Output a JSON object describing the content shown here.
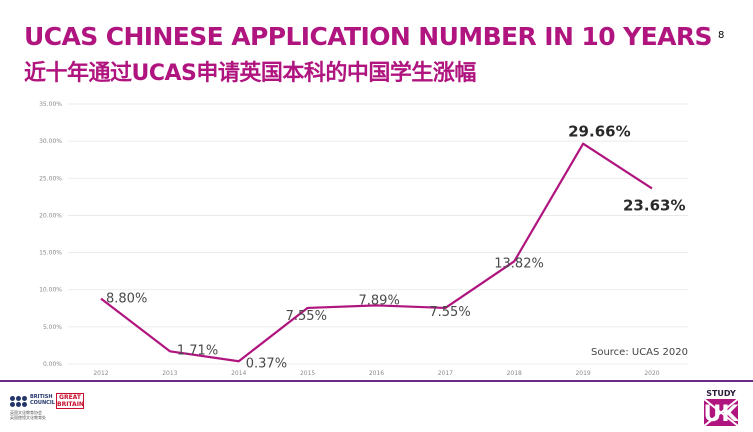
{
  "slide": {
    "title_en": "UCAS CHINESE APPLICATION NUMBER IN 10 YEARS",
    "title_cn": "近十年通过UCAS申请英国本科的中国学生涨幅",
    "page_number": "8",
    "accent_color": "#b0147e",
    "title_color": "#b0147e"
  },
  "chart_data": {
    "type": "line",
    "title": "",
    "xlabel": "",
    "ylabel": "",
    "ylim": [
      0,
      35
    ],
    "y_ticks": [
      "0.00%",
      "5.00%",
      "10.00%",
      "15.00%",
      "20.00%",
      "25.00%",
      "30.00%",
      "35.00%"
    ],
    "categories": [
      "2012",
      "2013",
      "2014",
      "2015",
      "2016",
      "2017",
      "2018",
      "2019",
      "2020"
    ],
    "series": [
      {
        "values": [
          8.8,
          1.71,
          0.37,
          7.55,
          7.89,
          7.55,
          13.82,
          29.66,
          23.63
        ],
        "labels": [
          "8.80%",
          "1.71%",
          "0.37%",
          "7.55%",
          "7.89%",
          "7.55%",
          "13.82%",
          "29.66%",
          "23.63%"
        ],
        "color": "#b0147e"
      }
    ],
    "grid": true,
    "legend": "none",
    "annotation": "Source: UCAS 2020"
  },
  "footer": {
    "bc_line1": "BRITISH",
    "bc_line2": "COUNCIL",
    "bc_sub1": "英国文化教育协会",
    "bc_sub2": "英国使馆文化教育处",
    "great_line1": "GREAT",
    "great_line2": "BRITAIN",
    "study": "STUDY",
    "uk": "UK",
    "footer_line_color": "#6a2a8a"
  }
}
